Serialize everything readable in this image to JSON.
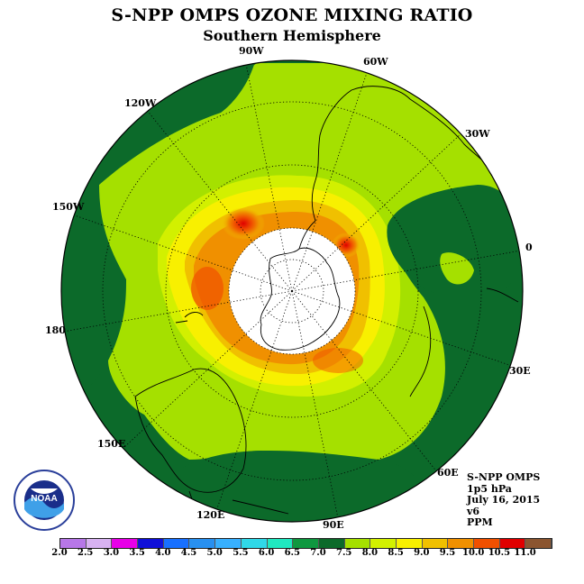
{
  "title": "S-NPP OMPS OZONE MIXING RATIO",
  "subtitle": "Southern Hemisphere",
  "longitude_labels": {
    "lon_90w": "90W",
    "lon_60w": "60W",
    "lon_30w": "30W",
    "lon_0": "0",
    "lon_30e": "30E",
    "lon_60e": "60E",
    "lon_90e": "90E",
    "lon_120e": "120E",
    "lon_150e": "150E",
    "lon_180": "180",
    "lon_150w": "150W",
    "lon_120w": "120W"
  },
  "info": {
    "instrument": "S-NPP OMPS",
    "level": "1p5 hPa",
    "date": "July 16, 2015",
    "version": "v6",
    "units": "PPM"
  },
  "logo_text": "NOAA",
  "colorbar": {
    "ticks": [
      "2.0",
      "2.5",
      "3.0",
      "3.5",
      "4.0",
      "4.5",
      "5.0",
      "5.5",
      "6.0",
      "6.5",
      "7.0",
      "7.5",
      "8.0",
      "8.5",
      "9.0",
      "9.5",
      "10.0",
      "10.5",
      "11.0"
    ],
    "colors": [
      "#b777e8",
      "#d8b2f2",
      "#e800e8",
      "#1010d8",
      "#1870ff",
      "#2890f0",
      "#38b0ff",
      "#30d8e8",
      "#20e8c0",
      "#0f9840",
      "#0c6a2a",
      "#a5e000",
      "#d2f000",
      "#f8f000",
      "#f0c000",
      "#f09000",
      "#f05000",
      "#e00000",
      "#8b5530"
    ]
  }
}
